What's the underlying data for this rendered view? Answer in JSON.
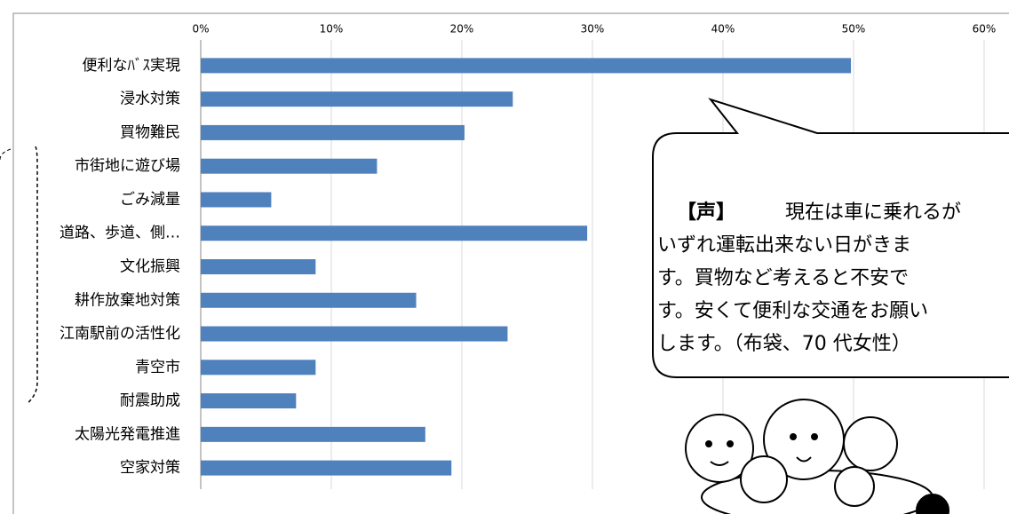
{
  "chart_data": {
    "type": "bar",
    "orientation": "horizontal",
    "categories": [
      "便利なﾊﾞｽ実現",
      "浸水対策",
      "買物難民",
      "市街地に遊び場",
      "ごみ減量",
      "道路、歩道、側…",
      "文化振興",
      "耕作放棄地対策",
      "江南駅前の活性化",
      "青空市",
      "耐震助成",
      "太陽光発電推進",
      "空家対策"
    ],
    "values": [
      49.8,
      23.9,
      20.2,
      13.5,
      5.4,
      29.6,
      8.8,
      16.5,
      23.5,
      8.8,
      7.3,
      17.2,
      19.2
    ],
    "color": "#4f81bd",
    "xlim": [
      0,
      60
    ],
    "xticks": [
      {
        "value": 0,
        "label": "0%"
      },
      {
        "value": 10,
        "label": "10%"
      },
      {
        "value": 20,
        "label": "20%"
      },
      {
        "value": 30,
        "label": "30%"
      },
      {
        "value": 40,
        "label": "40%"
      },
      {
        "value": 50,
        "label": "50%"
      },
      {
        "value": 60,
        "label": "60%"
      }
    ],
    "grid": true,
    "annotation": {
      "heading": "【声】",
      "lines": [
        "現在は車に乗れるが",
        "いずれ運転出来ない日がきま",
        "す。買物など考えると不安で",
        "す。安くて便利な交通をお願い",
        "します。（布袋、70 代女性）"
      ]
    }
  }
}
